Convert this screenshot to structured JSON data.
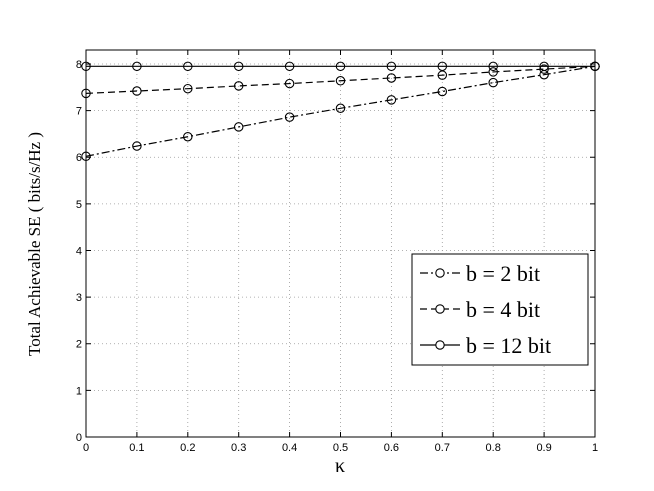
{
  "chart_data": {
    "type": "line",
    "xlabel": "κ",
    "ylabel": "Total Achievable SE ( bits/s/Hz )",
    "xlim": [
      0,
      1
    ],
    "ylim": [
      0,
      8.3
    ],
    "xticks": [
      "0",
      "0.1",
      "0.2",
      "0.3",
      "0.4",
      "0.5",
      "0.6",
      "0.7",
      "0.8",
      "0.9",
      "1"
    ],
    "yticks": [
      "0",
      "1",
      "2",
      "3",
      "4",
      "5",
      "6",
      "7",
      "8"
    ],
    "grid": true,
    "legend_position": "lower-right",
    "x": [
      0,
      0.1,
      0.2,
      0.3,
      0.4,
      0.5,
      0.6,
      0.7,
      0.8,
      0.9,
      1.0
    ],
    "series": [
      {
        "name": "b = 2 bit",
        "line_style": "dash-dot",
        "values": [
          6.02,
          6.24,
          6.44,
          6.65,
          6.86,
          7.05,
          7.23,
          7.41,
          7.6,
          7.77,
          7.95
        ]
      },
      {
        "name": "b = 4 bit",
        "line_style": "dashed",
        "values": [
          7.37,
          7.42,
          7.47,
          7.53,
          7.58,
          7.64,
          7.7,
          7.76,
          7.83,
          7.89,
          7.95
        ]
      },
      {
        "name": "b = 12 bit",
        "line_style": "solid",
        "values": [
          7.95,
          7.95,
          7.95,
          7.95,
          7.95,
          7.95,
          7.95,
          7.95,
          7.95,
          7.95,
          7.95
        ]
      }
    ]
  }
}
